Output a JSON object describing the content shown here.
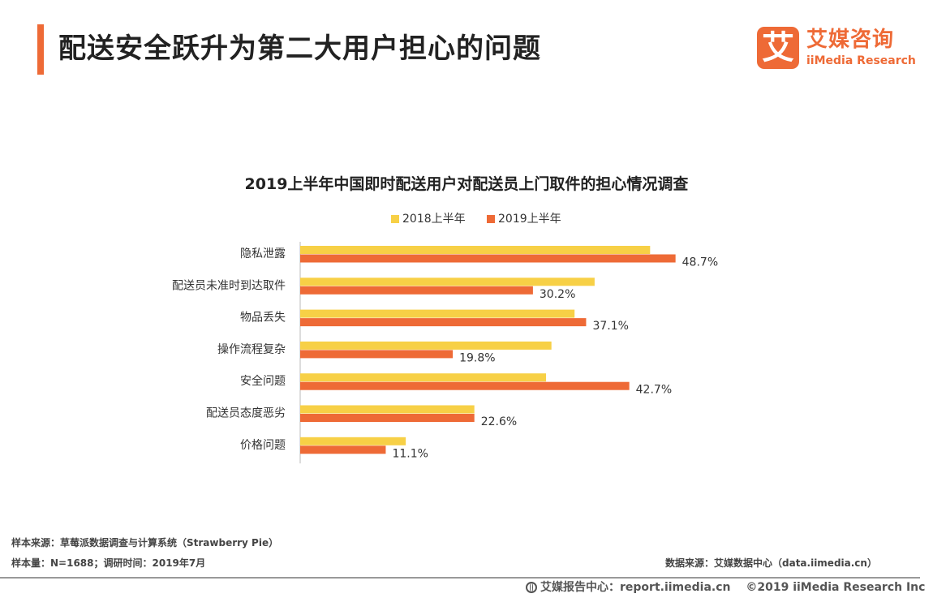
{
  "page": {
    "title": "配送安全跃升为第二大用户担心的问题"
  },
  "logo": {
    "mark": "艾",
    "name_cn": "艾媒咨询",
    "name_en": "iiMedia Research",
    "color": "#ee6a36"
  },
  "chart_data": {
    "type": "bar",
    "orientation": "horizontal",
    "title": "2019上半年中国即时配送用户对配送员上门取件的担心情况调查",
    "categories": [
      "隐私泄露",
      "配送员未准时到达取件",
      "物品丢失",
      "操作流程复杂",
      "安全问题",
      "配送员态度恶劣",
      "价格问题"
    ],
    "series": [
      {
        "name": "2018上半年",
        "color": "#f7d046",
        "values": [
          45.4,
          38.2,
          35.6,
          32.6,
          31.9,
          22.6,
          13.7
        ]
      },
      {
        "name": "2019上半年",
        "color": "#ee6a36",
        "values": [
          48.7,
          30.2,
          37.1,
          19.8,
          42.7,
          22.6,
          11.1
        ]
      }
    ],
    "data_labels": [
      "48.7%",
      "30.2%",
      "37.1%",
      "19.8%",
      "42.7%",
      "22.6%",
      "11.1%"
    ],
    "xlim": [
      0,
      60
    ],
    "legend_position": "top",
    "grid": false
  },
  "footer": {
    "sample_source": "样本来源：草莓派数据调查与计算系统（Strawberry Pie）",
    "sample_size": "样本量：N=1688；调研时间：2019年7月",
    "data_source": "数据来源：艾媒数据中心（data.iimedia.cn）",
    "report_center": "艾媒报告中心：report.iimedia.cn",
    "copyright": "©2019  iiMedia Research  Inc"
  }
}
